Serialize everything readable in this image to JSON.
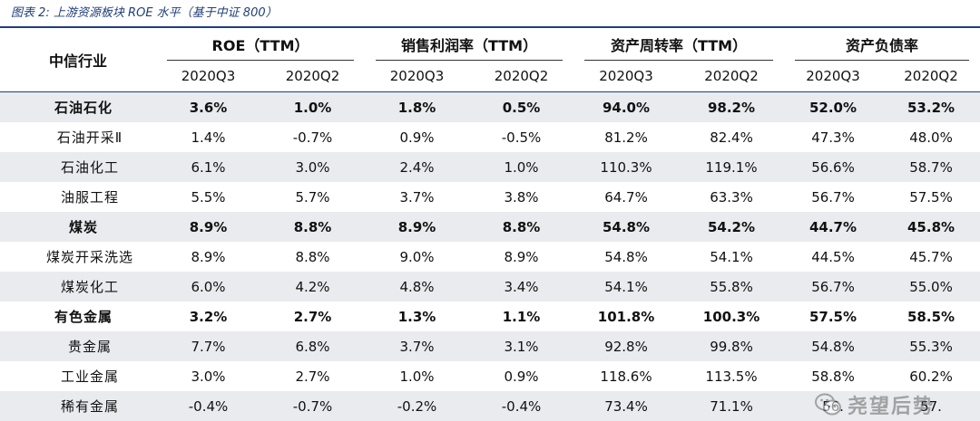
{
  "caption": "图表 2:  上游资源板块 ROE 水平（基于中证 800）",
  "header": {
    "industry_label": "中信行业",
    "groups": [
      "ROE（TTM）",
      "销售利润率（TTM）",
      "资产周转率（TTM）",
      "资产负债率"
    ],
    "periods": [
      "2020Q3",
      "2020Q2",
      "2020Q3",
      "2020Q2",
      "2020Q3",
      "2020Q2",
      "2020Q3",
      "2020Q2"
    ]
  },
  "rows": [
    {
      "name": "石油石化",
      "level": "major",
      "values": [
        "3.6%",
        "1.0%",
        "1.8%",
        "0.5%",
        "94.0%",
        "98.2%",
        "52.0%",
        "53.2%"
      ]
    },
    {
      "name": "石油开采Ⅱ",
      "level": "sub",
      "values": [
        "1.4%",
        "-0.7%",
        "0.9%",
        "-0.5%",
        "81.2%",
        "82.4%",
        "47.3%",
        "48.0%"
      ]
    },
    {
      "name": "石油化工",
      "level": "sub",
      "values": [
        "6.1%",
        "3.0%",
        "2.4%",
        "1.0%",
        "110.3%",
        "119.1%",
        "56.6%",
        "58.7%"
      ]
    },
    {
      "name": "油服工程",
      "level": "sub",
      "values": [
        "5.5%",
        "5.7%",
        "3.7%",
        "3.8%",
        "64.7%",
        "63.3%",
        "56.7%",
        "57.5%"
      ]
    },
    {
      "name": "煤炭",
      "level": "major",
      "values": [
        "8.9%",
        "8.8%",
        "8.9%",
        "8.8%",
        "54.8%",
        "54.2%",
        "44.7%",
        "45.8%"
      ]
    },
    {
      "name": "煤炭开采洗选",
      "level": "sub",
      "values": [
        "8.9%",
        "8.8%",
        "9.0%",
        "8.9%",
        "54.8%",
        "54.1%",
        "44.5%",
        "45.7%"
      ]
    },
    {
      "name": "煤炭化工",
      "level": "sub",
      "values": [
        "6.0%",
        "4.2%",
        "4.8%",
        "3.4%",
        "54.1%",
        "55.8%",
        "56.7%",
        "55.0%"
      ]
    },
    {
      "name": "有色金属",
      "level": "major",
      "values": [
        "3.2%",
        "2.7%",
        "1.3%",
        "1.1%",
        "101.8%",
        "100.3%",
        "57.5%",
        "58.5%"
      ]
    },
    {
      "name": "贵金属",
      "level": "sub",
      "values": [
        "7.7%",
        "6.8%",
        "3.7%",
        "3.1%",
        "92.8%",
        "99.8%",
        "54.8%",
        "55.3%"
      ]
    },
    {
      "name": "工业金属",
      "level": "sub",
      "values": [
        "3.0%",
        "2.7%",
        "1.0%",
        "0.9%",
        "118.6%",
        "113.5%",
        "58.8%",
        "60.2%"
      ]
    },
    {
      "name": "稀有金属",
      "level": "sub",
      "values": [
        "-0.4%",
        "-0.7%",
        "-0.2%",
        "-0.4%",
        "73.4%",
        "71.1%",
        "56.",
        "57."
      ]
    }
  ],
  "watermark": {
    "icon": "wechat-icon",
    "text": "尧望后势"
  }
}
